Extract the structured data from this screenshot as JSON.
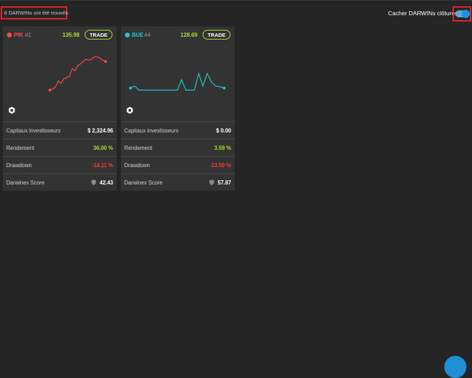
{
  "header": {
    "found_text": "6 DARWINs ont été trouvés",
    "hide_closed_label": "Cacher DARWINs clôturés",
    "hide_closed_enabled": true
  },
  "labels": {
    "investor_capital": "Capitaux investisseurs",
    "return": "Rendement",
    "drawdown": "Drawdown",
    "score": "Darwinex Score"
  },
  "cards": [
    {
      "name": "PIK",
      "rank": "#1",
      "quote": "135.98",
      "trade_label": "TRADE",
      "color": "#ff4a4a",
      "investor_capital": "$ 2,324.96",
      "return": "36.00 %",
      "drawdown": "-14.11 %",
      "score": "42.43",
      "sparkline": [
        100,
        101,
        103,
        108,
        106,
        110,
        111,
        112,
        119,
        117,
        121,
        123,
        125,
        127,
        126,
        127,
        129,
        129,
        128,
        126,
        125
      ]
    },
    {
      "name": "BUE",
      "rank": "#4",
      "quote": "128.69",
      "trade_label": "TRADE",
      "color": "#1ec8d0",
      "investor_capital": "$ 0.00",
      "return": "3.59 %",
      "drawdown": "-13.50 %",
      "score": "57.87",
      "sparkline": [
        100.5,
        101,
        100,
        100,
        100,
        100,
        100,
        100,
        100,
        100,
        100,
        100,
        102.5,
        100,
        100,
        100,
        104,
        101,
        104,
        102,
        101,
        100.8,
        100.5
      ]
    }
  ],
  "colors": {
    "positive": "#a6e22e",
    "negative": "#ff3b30",
    "highlight_border": "#e0262a"
  }
}
